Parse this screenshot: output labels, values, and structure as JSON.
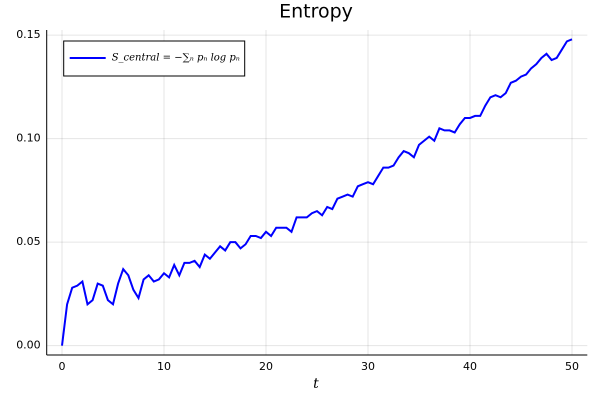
{
  "chart_data": {
    "type": "line",
    "title": "Entropy",
    "x_label": "t",
    "x": [
      0,
      0.5,
      1,
      1.5,
      2,
      2.5,
      3,
      3.5,
      4,
      4.5,
      5,
      5.5,
      6,
      6.5,
      7,
      7.5,
      8,
      8.5,
      9,
      9.5,
      10,
      10.5,
      11,
      11.5,
      12,
      12.5,
      13,
      13.5,
      14,
      14.5,
      15,
      15.5,
      16,
      16.5,
      17,
      17.5,
      18,
      18.5,
      19,
      19.5,
      20,
      20.5,
      21,
      21.5,
      22,
      22.5,
      23,
      23.5,
      24,
      24.5,
      25,
      25.5,
      26,
      26.5,
      27,
      27.5,
      28,
      28.5,
      29,
      29.5,
      30,
      30.5,
      31,
      31.5,
      32,
      32.5,
      33,
      33.5,
      34,
      34.5,
      35,
      35.5,
      36,
      36.5,
      37,
      37.5,
      38,
      38.5,
      39,
      39.5,
      40,
      40.5,
      41,
      41.5,
      42,
      42.5,
      43,
      43.5,
      44,
      44.5,
      45,
      45.5,
      46,
      46.5,
      47,
      47.5,
      48,
      48.5,
      49,
      49.5,
      50
    ],
    "series": [
      {
        "name": "S_central = −∑ₙ pₙ log pₙ",
        "color": "#0000ff",
        "values": [
          0,
          0.02,
          0.028,
          0.029,
          0.031,
          0.02,
          0.022,
          0.03,
          0.029,
          0.022,
          0.02,
          0.03,
          0.037,
          0.034,
          0.027,
          0.023,
          0.032,
          0.034,
          0.031,
          0.032,
          0.035,
          0.033,
          0.039,
          0.034,
          0.04,
          0.04,
          0.041,
          0.038,
          0.044,
          0.042,
          0.045,
          0.048,
          0.046,
          0.05,
          0.05,
          0.047,
          0.049,
          0.053,
          0.053,
          0.052,
          0.055,
          0.053,
          0.057,
          0.057,
          0.057,
          0.055,
          0.062,
          0.062,
          0.062,
          0.064,
          0.065,
          0.063,
          0.067,
          0.066,
          0.071,
          0.072,
          0.073,
          0.072,
          0.077,
          0.078,
          0.079,
          0.078,
          0.082,
          0.086,
          0.086,
          0.087,
          0.091,
          0.094,
          0.093,
          0.091,
          0.097,
          0.099,
          0.101,
          0.099,
          0.105,
          0.104,
          0.104,
          0.103,
          0.107,
          0.11,
          0.11,
          0.111,
          0.111,
          0.116,
          0.12,
          0.121,
          0.12,
          0.122,
          0.127,
          0.128,
          0.13,
          0.131,
          0.134,
          0.136,
          0.139,
          0.141,
          0.138,
          0.139,
          0.143,
          0.147,
          0.148
        ]
      }
    ],
    "xlim": [
      -1.5,
      51.5
    ],
    "xticks": [
      0,
      10,
      20,
      30,
      40,
      50
    ],
    "ylim": [
      -0.0045,
      0.1525
    ],
    "yticks": [
      {
        "value": 0,
        "label": "0.00"
      },
      {
        "value": 0.05,
        "label": "0.05"
      },
      {
        "value": 0.1,
        "label": "0.10"
      },
      {
        "value": 0.15,
        "label": "0.15"
      }
    ],
    "grid": true,
    "legend": "top-left"
  }
}
